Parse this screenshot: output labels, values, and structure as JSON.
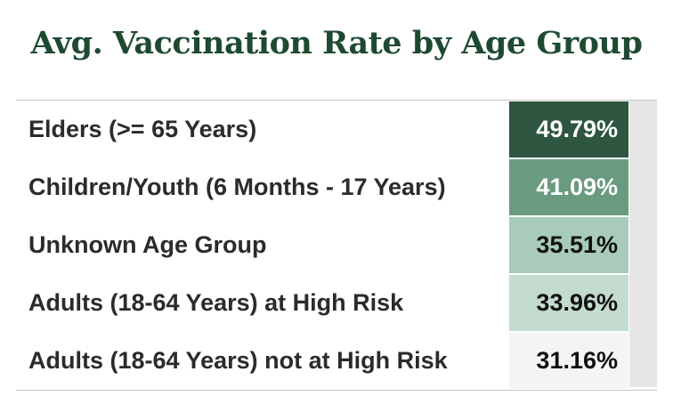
{
  "chart_data": {
    "type": "table",
    "title": "Avg. Vaccination Rate by Age Group",
    "categories": [
      "Elders (>= 65 Years)",
      "Children/Youth (6 Months - 17 Years)",
      "Unknown Age Group",
      "Adults (18-64 Years) at High Risk",
      "Adults (18-64 Years) not at High Risk"
    ],
    "values": [
      49.79,
      41.09,
      35.51,
      33.96,
      31.16
    ],
    "value_labels": [
      "49.79%",
      "41.09%",
      "35.51%",
      "33.96%",
      "31.16%"
    ],
    "cell_colors": [
      "#2e5641",
      "#6a9a80",
      "#a8cbba",
      "#c3dccf",
      "#f4f4f4"
    ],
    "text_colors": [
      "#ffffff",
      "#ffffff",
      "#111111",
      "#111111",
      "#111111"
    ]
  }
}
